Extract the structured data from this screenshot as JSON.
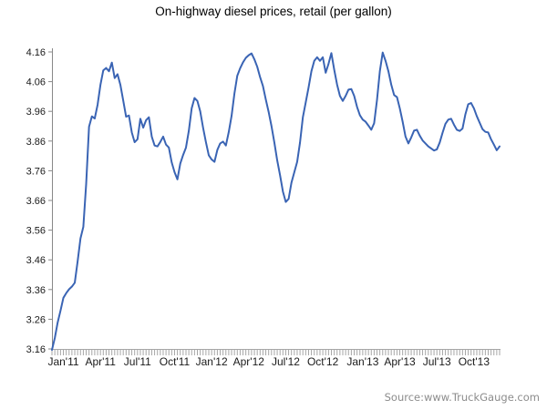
{
  "title": "On-highway diesel prices, retail (per gallon)",
  "source": "Source:www.TruckGauge.com",
  "chart_data": {
    "type": "line",
    "title": "On-highway diesel prices, retail (per gallon)",
    "xlabel": "",
    "ylabel": "",
    "ylim": [
      3.16,
      4.16
    ],
    "grid": false,
    "legend": "none",
    "line_color": "#3a64b4",
    "axis_color": "#888888",
    "minor_tick_color": "#a6a6a6",
    "y_ticks": [
      3.16,
      3.26,
      3.36,
      3.46,
      3.56,
      3.66,
      3.76,
      3.86,
      3.96,
      4.06,
      4.16
    ],
    "x_tick_labels": [
      {
        "label": "Jan'11",
        "week": 4
      },
      {
        "label": "Apr'11",
        "week": 17
      },
      {
        "label": "Jul'11",
        "week": 30
      },
      {
        "label": "Oct'11",
        "week": 43
      },
      {
        "label": "Jan'12",
        "week": 56
      },
      {
        "label": "Apr'12",
        "week": 69
      },
      {
        "label": "Jul'12",
        "week": 82
      },
      {
        "label": "Oct'12",
        "week": 95
      },
      {
        "label": "Jan'13",
        "week": 109
      },
      {
        "label": "Apr'13",
        "week": 122
      },
      {
        "label": "Jul'13",
        "week": 135
      },
      {
        "label": "Oct'13",
        "week": 148
      }
    ],
    "values": [
      3.157,
      3.197,
      3.249,
      3.289,
      3.332,
      3.348,
      3.361,
      3.37,
      3.383,
      3.455,
      3.532,
      3.571,
      3.716,
      3.908,
      3.943,
      3.936,
      3.982,
      4.049,
      4.098,
      4.106,
      4.095,
      4.124,
      4.072,
      4.085,
      4.049,
      3.996,
      3.942,
      3.946,
      3.889,
      3.856,
      3.866,
      3.935,
      3.905,
      3.93,
      3.94,
      3.875,
      3.845,
      3.842,
      3.857,
      3.875,
      3.848,
      3.838,
      3.788,
      3.755,
      3.731,
      3.784,
      3.813,
      3.838,
      3.894,
      3.97,
      4.005,
      3.995,
      3.96,
      3.905,
      3.856,
      3.812,
      3.798,
      3.79,
      3.83,
      3.852,
      3.858,
      3.845,
      3.89,
      3.945,
      4.02,
      4.08,
      4.105,
      4.125,
      4.14,
      4.149,
      4.155,
      4.135,
      4.11,
      4.075,
      4.045,
      4.0,
      3.958,
      3.91,
      3.855,
      3.795,
      3.745,
      3.69,
      3.655,
      3.665,
      3.72,
      3.755,
      3.79,
      3.855,
      3.94,
      3.99,
      4.04,
      4.095,
      4.13,
      4.142,
      4.13,
      4.142,
      4.09,
      4.12,
      4.156,
      4.1,
      4.05,
      4.012,
      3.995,
      4.012,
      4.033,
      4.035,
      4.012,
      3.975,
      3.947,
      3.932,
      3.925,
      3.912,
      3.898,
      3.92,
      3.998,
      4.095,
      4.158,
      4.13,
      4.095,
      4.05,
      4.015,
      4.008,
      3.97,
      3.925,
      3.875,
      3.852,
      3.872,
      3.895,
      3.898,
      3.878,
      3.862,
      3.852,
      3.842,
      3.835,
      3.828,
      3.832,
      3.855,
      3.888,
      3.918,
      3.932,
      3.935,
      3.915,
      3.898,
      3.894,
      3.902,
      3.95,
      3.984,
      3.988,
      3.97,
      3.944,
      3.922,
      3.9,
      3.891,
      3.889,
      3.866,
      3.848,
      3.829,
      3.842
    ]
  }
}
